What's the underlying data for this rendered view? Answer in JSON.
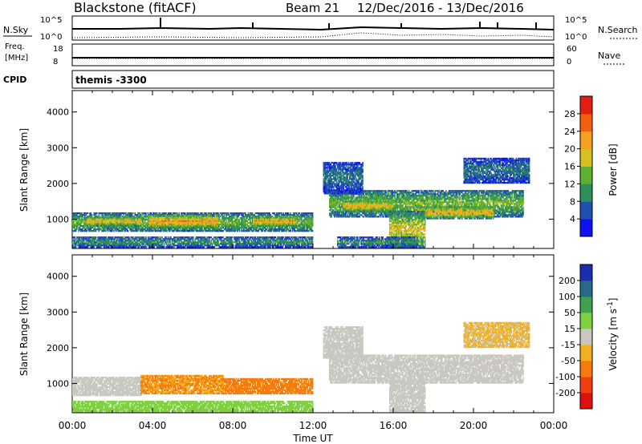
{
  "header": {
    "station": "Blackstone (fitACF)",
    "beam": "Beam 21",
    "dates": "12/Dec/2016 - 13/Dec/2016"
  },
  "panels": {
    "nsky": {
      "left_label": "N.Sky",
      "right_label": "N.Search",
      "left_ticks": [
        "10^5",
        "10^0"
      ],
      "right_ticks": [
        "10^5",
        "10^0"
      ]
    },
    "freq": {
      "left_label_line1": "Freq.",
      "left_label_line2": "[MHz]",
      "right_label": "Nave",
      "left_ticks": [
        "18",
        "8"
      ],
      "right_ticks": [
        "60",
        "0"
      ]
    },
    "cpid": {
      "left_label": "CPID",
      "value": "themis -3300"
    }
  },
  "chart_data": [
    {
      "type": "heatmap",
      "title": "",
      "xlabel": "Time UT",
      "ylabel": "Slant Range [km]",
      "x_ticks": [
        "00:00",
        "04:00",
        "08:00",
        "12:00",
        "16:00",
        "20:00",
        "00:00"
      ],
      "xlim_hours": [
        0,
        24
      ],
      "y_ticks": [
        1000,
        2000,
        3000,
        4000
      ],
      "ylim": [
        180,
        4600
      ],
      "colorbar": {
        "label": "Power [dB]",
        "ticks": [
          "4",
          "8",
          "12",
          "16",
          "20",
          "24",
          "28"
        ],
        "range": [
          0,
          30
        ],
        "colors": [
          "#1010f0",
          "#2050b0",
          "#2f8f5a",
          "#5fb030",
          "#d8c020",
          "#f5a020",
          "#f06010",
          "#e02010"
        ]
      },
      "regions": [
        {
          "t0": 0.0,
          "t1": 12.0,
          "r0": 650,
          "r1": 1150,
          "level": 14
        },
        {
          "t0": 0.7,
          "t1": 3.4,
          "r0": 800,
          "r1": 1050,
          "level": 20
        },
        {
          "t0": 3.8,
          "t1": 7.2,
          "r0": 750,
          "r1": 1100,
          "level": 22
        },
        {
          "t0": 9.0,
          "t1": 11.2,
          "r0": 800,
          "r1": 1050,
          "level": 22
        },
        {
          "t0": 0.0,
          "t1": 12.0,
          "r0": 200,
          "r1": 500,
          "level": 10
        },
        {
          "t0": 12.8,
          "t1": 22.5,
          "r0": 1050,
          "r1": 1800,
          "level": 14
        },
        {
          "t0": 13.5,
          "t1": 16.0,
          "r0": 1200,
          "r1": 1500,
          "level": 20
        },
        {
          "t0": 17.2,
          "t1": 21.0,
          "r0": 1000,
          "r1": 1350,
          "level": 20
        },
        {
          "t0": 15.8,
          "t1": 17.6,
          "r0": 200,
          "r1": 1200,
          "level": 18
        },
        {
          "t0": 12.5,
          "t1": 14.5,
          "r0": 1700,
          "r1": 2600,
          "level": 8
        },
        {
          "t0": 13.2,
          "t1": 17.2,
          "r0": 200,
          "r1": 480,
          "level": 10
        },
        {
          "t0": 19.5,
          "t1": 22.8,
          "r0": 2000,
          "r1": 2700,
          "level": 8
        }
      ]
    },
    {
      "type": "heatmap",
      "title": "",
      "xlabel": "Time UT",
      "ylabel": "Slant Range [km]",
      "x_ticks": [
        "00:00",
        "04:00",
        "08:00",
        "12:00",
        "16:00",
        "20:00",
        "00:00"
      ],
      "xlim_hours": [
        0,
        24
      ],
      "y_ticks": [
        1000,
        2000,
        3000,
        4000
      ],
      "ylim": [
        180,
        4600
      ],
      "colorbar": {
        "label": "Velocity [m s^-1]",
        "ticks": [
          "200",
          "100",
          "50",
          "15",
          "-15",
          "-50",
          "-100",
          "-200"
        ],
        "colors": [
          "#1a2fb0",
          "#2a6a8a",
          "#3fa050",
          "#7fd040",
          "#c8c8c0",
          "#f0b020",
          "#f57a10",
          "#f04010",
          "#e01010"
        ]
      },
      "regions": [
        {
          "t0": 0.0,
          "t1": 3.4,
          "r0": 650,
          "r1": 1150,
          "velocity": 0
        },
        {
          "t0": 3.4,
          "t1": 7.5,
          "r0": 700,
          "r1": 1200,
          "velocity": -50
        },
        {
          "t0": 7.5,
          "t1": 12.0,
          "r0": 700,
          "r1": 1150,
          "velocity": -60
        },
        {
          "t0": 0.0,
          "t1": 12.0,
          "r0": 200,
          "r1": 500,
          "velocity": 30
        },
        {
          "t0": 12.8,
          "t1": 22.5,
          "r0": 1000,
          "r1": 1800,
          "velocity": 0
        },
        {
          "t0": 15.8,
          "t1": 17.6,
          "r0": 200,
          "r1": 1100,
          "velocity": 0
        },
        {
          "t0": 12.5,
          "t1": 14.5,
          "r0": 1700,
          "r1": 2600,
          "velocity": 0
        },
        {
          "t0": 19.5,
          "t1": 22.8,
          "r0": 2000,
          "r1": 2700,
          "velocity": -20
        }
      ]
    }
  ]
}
